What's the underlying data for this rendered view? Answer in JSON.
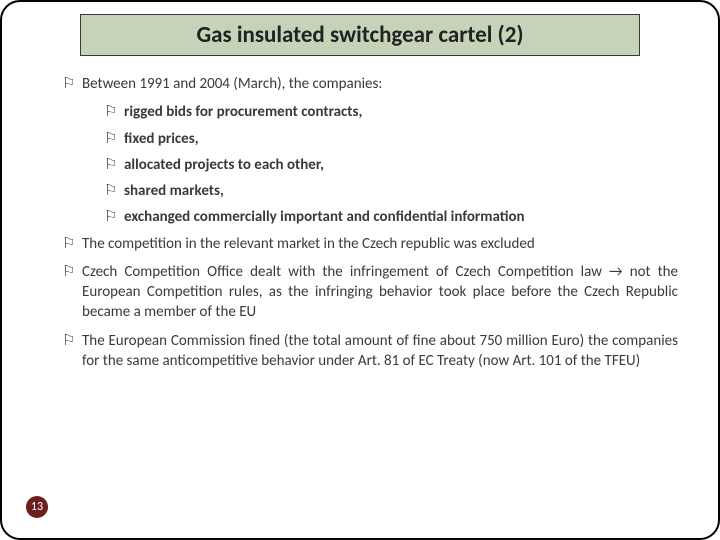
{
  "title": "Gas insulated switchgear cartel (2)",
  "bullets": [
    {
      "level": 1,
      "text": "Between 1991 and 2004 (March), the companies:"
    },
    {
      "level": 2,
      "text": "rigged bids for procurement contracts,"
    },
    {
      "level": 2,
      "text": "fixed prices,"
    },
    {
      "level": 2,
      "text": "allocated projects to each other,"
    },
    {
      "level": 2,
      "text": "shared markets,"
    },
    {
      "level": 2,
      "text": "exchanged commercially important and confidential information"
    },
    {
      "level": 1,
      "text": "The competition in the relevant market in the Czech republic was excluded"
    },
    {
      "level": 1,
      "text": "Czech Competition Office dealt with the infringement of Czech Competition law → not the European Competition rules, as the infringing behavior took place before the Czech Republic became a member of the EU"
    },
    {
      "level": 1,
      "text": "The European Commission fined (the total amount of fine about 750 million Euro) the companies for the same anticompetitive behavior under Art. 81 of EC Treaty (now Art. 101 of the TFEU)"
    }
  ],
  "marker": "⚐",
  "pageNumber": "13",
  "colors": {
    "titleBg": "#c5d4b8",
    "titleBorder": "#3a3a3a",
    "bodyText": "#3a3a3a",
    "pageBadgeBg": "#6b1f1f",
    "pageBadgeText": "#ffffff",
    "slideBorder": "#000000",
    "background": "#ffffff"
  }
}
